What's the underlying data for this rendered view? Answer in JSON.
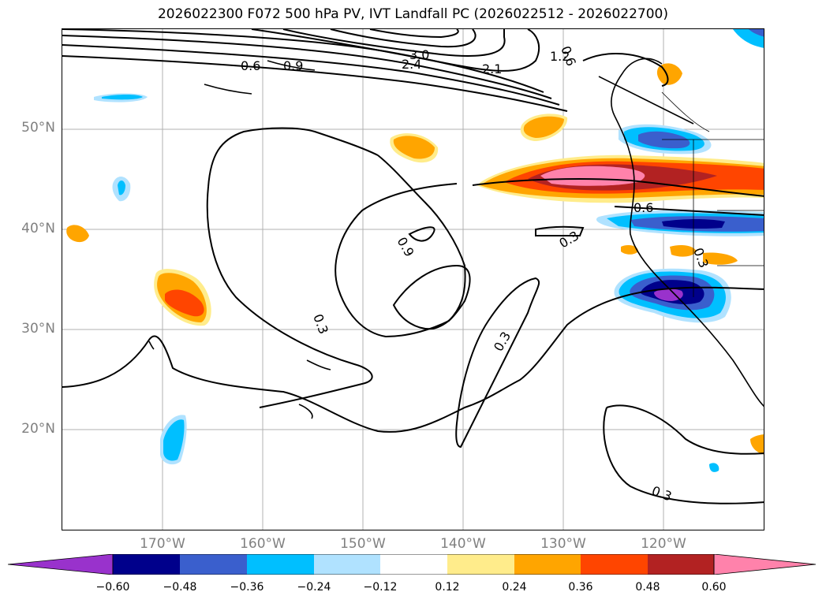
{
  "title": "2026022300 F072 500 hPa PV, IVT Landfall PC (2026022512 - 2026022700)",
  "map": {
    "lat_labels": [
      "50°N",
      "40°N",
      "30°N",
      "20°N"
    ],
    "lon_labels": [
      "170°W",
      "160°W",
      "150°W",
      "140°W",
      "130°W",
      "120°W"
    ],
    "contour_labels": [
      "3.0",
      "2.4",
      "2.1",
      "1.2",
      "0.6",
      "0.9",
      "0.9",
      "0.6",
      "0.3",
      "0.3",
      "0.3",
      "0.3",
      "0.3",
      "0.6"
    ]
  },
  "colorbar": {
    "ticks": [
      "−0.60",
      "−0.48",
      "−0.36",
      "−0.24",
      "−0.12",
      "0.12",
      "0.24",
      "0.36",
      "0.48",
      "0.60"
    ],
    "colors": [
      "#9932cc",
      "#00008b",
      "#3a5fcd",
      "#00bfff",
      "#b0e2ff",
      "#ffffff",
      "#ffec8b",
      "#ffa500",
      "#ff4500",
      "#b22222",
      "#ff82ab"
    ]
  }
}
